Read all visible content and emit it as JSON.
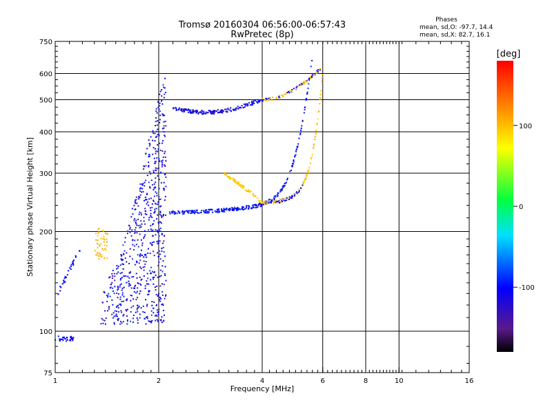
{
  "chart_data": {
    "type": "scatter",
    "title": "Tromsø 20160304 06:56:00-06:57:43",
    "subtitle": "RwPretec (8p)",
    "xlabel": "Frequency [MHz]",
    "ylabel": "Stationary phase Virtual Height [km]",
    "x_scale": "log",
    "y_scale": "log",
    "xlim": [
      1,
      16
    ],
    "ylim": [
      75,
      750
    ],
    "x_ticks": [
      1,
      2,
      4,
      6,
      8,
      10,
      16
    ],
    "x_tick_labels": [
      "1",
      "2",
      "4",
      "6",
      "8",
      "10",
      "16"
    ],
    "y_ticks": [
      75,
      100,
      200,
      300,
      400,
      500,
      600,
      750
    ],
    "y_tick_labels": [
      "75",
      "100",
      "200",
      "300",
      "400",
      "500",
      "600",
      "750"
    ],
    "grid": true,
    "stats": {
      "heading": "Phases",
      "o_line": "mean, sd,O: -97.7, 14.4",
      "x_line": "mean, sd,X:  82.7, 16.1"
    },
    "colorbar": {
      "label": "[deg]",
      "range": [
        -180,
        180
      ],
      "ticks": [
        100,
        0,
        -100
      ],
      "tick_labels": [
        "100",
        "0",
        "-100"
      ],
      "colormap": "rainbow"
    },
    "traces": [
      {
        "kind": "E-layer",
        "color_phase": -100,
        "x_range": [
          1.0,
          1.13
        ],
        "height": 95
      },
      {
        "kind": "ramp",
        "color_phase": -100,
        "x_range": [
          1.02,
          1.18
        ],
        "height_range": [
          130,
          175
        ]
      },
      {
        "kind": "Es-blob",
        "color_phase": 100,
        "x_range": [
          1.3,
          1.42
        ],
        "height_range": [
          165,
          205
        ]
      },
      {
        "kind": "F1-column",
        "color_phase": -110,
        "x_range": [
          1.35,
          2.1
        ],
        "height_range": [
          105,
          640
        ]
      },
      {
        "kind": "F-o-trace",
        "color_phase": -100,
        "x_range": [
          2.15,
          5.6
        ],
        "height_range": [
          225,
          650
        ]
      },
      {
        "kind": "F-x-trace",
        "color_phase": 95,
        "x_range": [
          3.1,
          6.0
        ],
        "height_range": [
          240,
          640
        ]
      },
      {
        "kind": "F2-echo-o",
        "color_phase": -110,
        "x_range": [
          2.2,
          4.0
        ],
        "height_range": [
          460,
          500
        ]
      },
      {
        "kind": "F2-echo-x",
        "color_phase": 100,
        "x_range": [
          4.0,
          5.9
        ],
        "height_range": [
          500,
          650
        ]
      }
    ]
  }
}
